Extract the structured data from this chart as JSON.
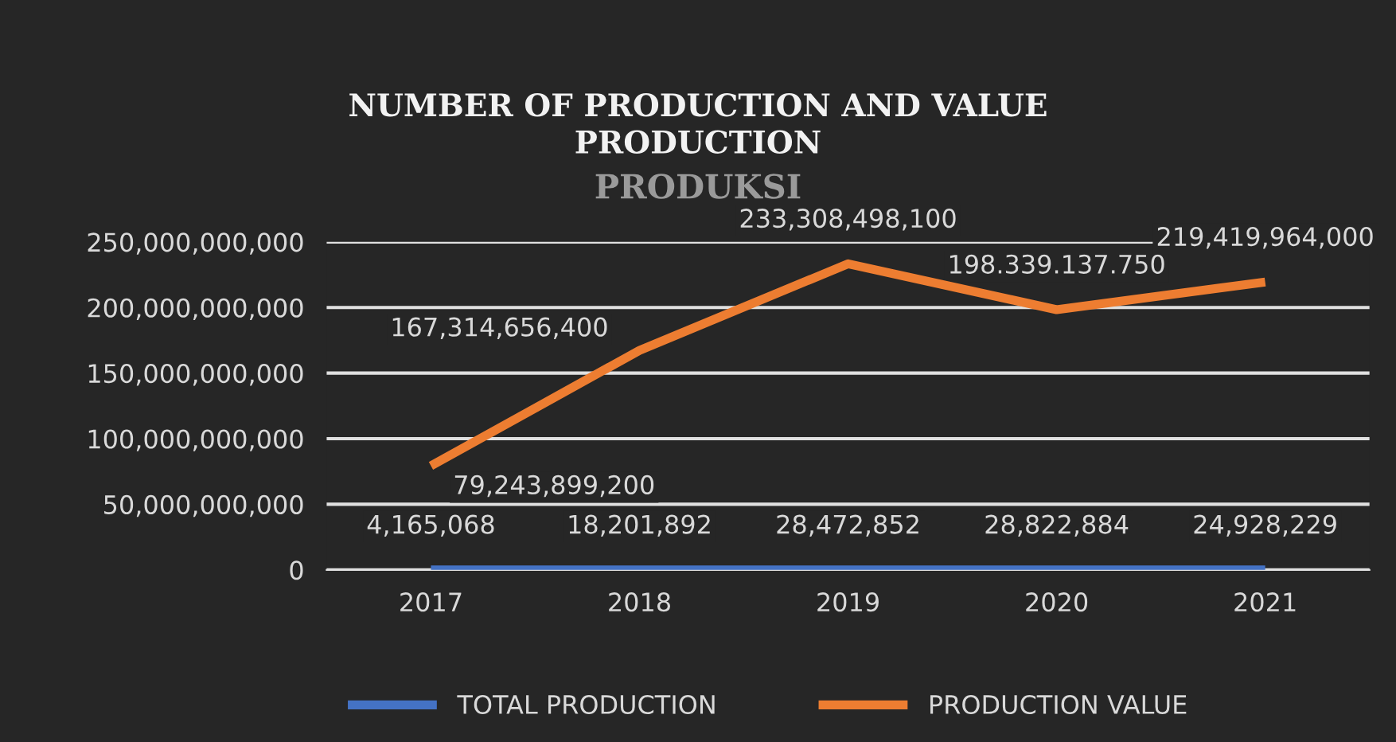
{
  "chart_data": {
    "type": "line",
    "title": "NUMBER OF PRODUCTION AND VALUE\nPRODUCTION",
    "annotations": [
      "PRODUKSI"
    ],
    "categories": [
      "2017",
      "2018",
      "2019",
      "2020",
      "2021"
    ],
    "series": [
      {
        "name": "TOTAL PRODUCTION",
        "color": "#4472c4",
        "values": [
          4165068,
          18201892,
          28472852,
          28822884,
          24928229
        ],
        "value_labels": [
          "4,165,068",
          "18,201,892",
          "28,472,852",
          "28,822,884",
          "24,928,229"
        ]
      },
      {
        "name": "PRODUCTION VALUE",
        "color": "#ed7d31",
        "values": [
          79243899200,
          167314656400,
          233308498100,
          198339137750,
          219419964000
        ],
        "value_labels": [
          "79,243,899,200",
          "167,314,656,400",
          "233,308,498,100",
          "198.339.137.750",
          "219,419,964,000"
        ]
      }
    ],
    "ylim": [
      0,
      250000000000
    ],
    "yticks": [
      0,
      {
        "value": 50000000000,
        "label": "50,000,000,000"
      },
      {
        "value": 100000000000,
        "label": "100,000,000,000"
      },
      {
        "value": 150000000000,
        "label": "150,000,000,000"
      },
      {
        "value": 200000000000,
        "label": "200,000,000,000"
      },
      {
        "value": 250000000000,
        "label": "250,000,000,000"
      }
    ],
    "grid": "y",
    "legend": "bottom",
    "marker": "none",
    "line_style": "solid"
  }
}
